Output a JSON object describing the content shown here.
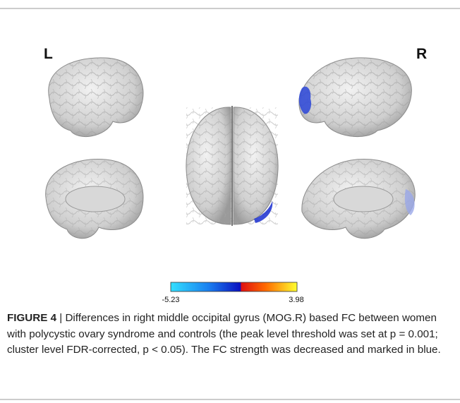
{
  "labels": {
    "left": "L",
    "right": "R"
  },
  "colorbar": {
    "min": -5.23,
    "max": 3.98
  },
  "caption": {
    "label": "FIGURE 4",
    "separator": "|",
    "text": "Differences in right middle occipital gyrus (MOG.R) based FC between women with polycystic ovary syndrome and controls (the peak level threshold was set at p = 0.001; cluster level FDR-corrected, p < 0.05). The FC strength was decreased and marked in blue."
  }
}
